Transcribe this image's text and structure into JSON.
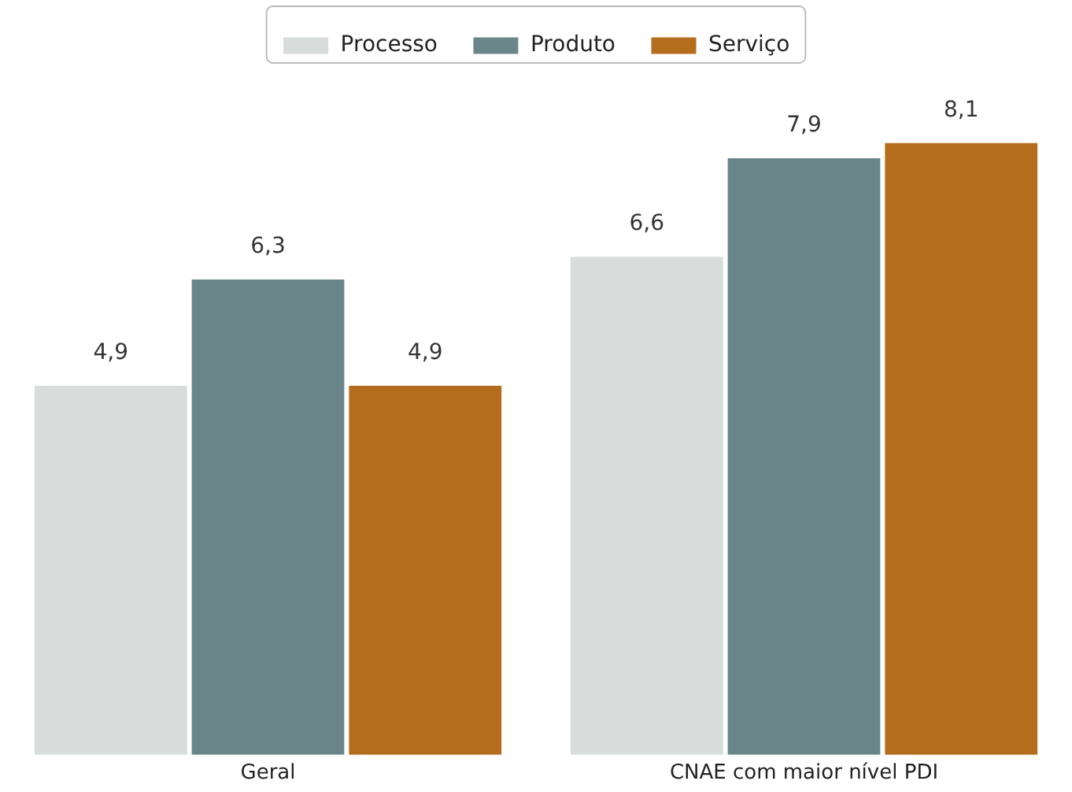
{
  "chart_data": {
    "type": "bar",
    "categories": [
      "Geral",
      "CNAE com maior nível PDI"
    ],
    "series": [
      {
        "name": "Processo",
        "color": "#d8dcdb",
        "values": [
          4.9,
          6.6
        ],
        "value_labels": [
          "4,9",
          "6,6"
        ]
      },
      {
        "name": "Produto",
        "color": "#6b868b",
        "values": [
          6.3,
          7.9
        ],
        "value_labels": [
          "6,3",
          "7,9"
        ]
      },
      {
        "name": "Serviço",
        "color": "#b36d1c",
        "values": [
          4.9,
          8.1
        ],
        "value_labels": [
          "4,9",
          "8,1"
        ]
      }
    ],
    "grid": false,
    "legend": "top"
  }
}
